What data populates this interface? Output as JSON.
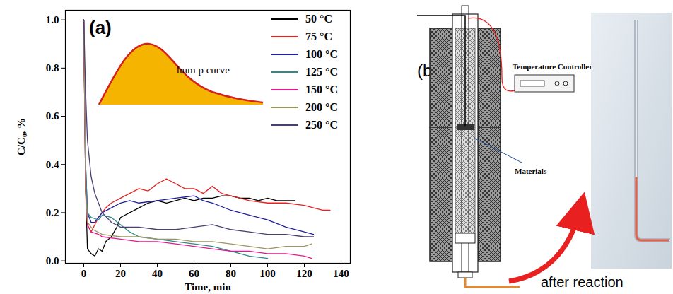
{
  "chart_data": {
    "type": "line",
    "x_label": "Time, min",
    "y_label": "C/C₀, %",
    "annotations": [
      "(a)",
      "hum p curve"
    ],
    "xlim": [
      -10,
      145
    ],
    "xticks": [
      0,
      20,
      40,
      60,
      80,
      100,
      120,
      140
    ],
    "ylim": [
      -0.01,
      1.04
    ],
    "yticks": [
      {
        "value": 0,
        "label": "0.0"
      },
      0.2,
      0.4,
      0.6,
      0.8,
      {
        "value": 1,
        "label": "1.0"
      }
    ],
    "grid": false,
    "legend": "top-right",
    "series": [
      {
        "name": "50 °C",
        "color": "#000000",
        "x": [
          0,
          1,
          2,
          4,
          6,
          8,
          10,
          12,
          15,
          18,
          20,
          25,
          30,
          35,
          40,
          45,
          50,
          55,
          60,
          65,
          70,
          75,
          80,
          85,
          90,
          95,
          100,
          105,
          110,
          115
        ],
        "values": [
          1.0,
          0.3,
          0.05,
          0.03,
          0.02,
          0.05,
          0.04,
          0.08,
          0.1,
          0.14,
          0.18,
          0.2,
          0.22,
          0.24,
          0.25,
          0.24,
          0.25,
          0.26,
          0.25,
          0.26,
          0.26,
          0.27,
          0.27,
          0.26,
          0.26,
          0.25,
          0.26,
          0.25,
          0.25,
          0.25
        ]
      },
      {
        "name": "75 °C",
        "color": "#e8201f",
        "x": [
          0,
          1,
          2,
          4,
          6,
          8,
          10,
          12,
          15,
          20,
          25,
          30,
          35,
          40,
          45,
          50,
          55,
          60,
          65,
          70,
          75,
          80,
          85,
          90,
          100,
          110,
          120,
          125,
          130,
          134
        ],
        "values": [
          1.0,
          0.3,
          0.15,
          0.12,
          0.15,
          0.18,
          0.2,
          0.22,
          0.24,
          0.26,
          0.28,
          0.3,
          0.29,
          0.32,
          0.34,
          0.32,
          0.3,
          0.3,
          0.28,
          0.31,
          0.28,
          0.27,
          0.26,
          0.25,
          0.24,
          0.24,
          0.23,
          0.22,
          0.21,
          0.21
        ]
      },
      {
        "name": "100 °C",
        "color": "#1f1f9e",
        "x": [
          0,
          1,
          2,
          4,
          6,
          8,
          10,
          15,
          20,
          25,
          30,
          40,
          50,
          60,
          65,
          70,
          80,
          90,
          100,
          110,
          120,
          125
        ],
        "values": [
          1.0,
          0.4,
          0.2,
          0.16,
          0.16,
          0.18,
          0.2,
          0.22,
          0.24,
          0.25,
          0.24,
          0.25,
          0.26,
          0.27,
          0.25,
          0.24,
          0.21,
          0.19,
          0.17,
          0.14,
          0.12,
          0.11
        ]
      },
      {
        "name": "125 °C",
        "color": "#2e8b8b",
        "x": [
          0,
          1,
          2,
          4,
          8,
          10,
          15,
          20,
          25,
          30,
          40,
          50,
          60,
          70,
          80,
          90,
          100
        ],
        "values": [
          1.0,
          0.4,
          0.2,
          0.18,
          0.17,
          0.19,
          0.18,
          0.15,
          0.12,
          0.1,
          0.09,
          0.08,
          0.07,
          0.06,
          0.04,
          0.02,
          0.01
        ]
      },
      {
        "name": "150 °C",
        "color": "#e6178f",
        "x": [
          0,
          1,
          2,
          4,
          8,
          10,
          20,
          30,
          40,
          50,
          60,
          70,
          80,
          90,
          100,
          110,
          120,
          124
        ],
        "values": [
          1.0,
          0.3,
          0.15,
          0.12,
          0.11,
          0.1,
          0.09,
          0.08,
          0.08,
          0.07,
          0.06,
          0.05,
          0.04,
          0.04,
          0.03,
          0.03,
          0.02,
          0.01
        ]
      },
      {
        "name": "200 °C",
        "color": "#9b9560",
        "x": [
          0,
          1,
          2,
          5,
          10,
          20,
          30,
          40,
          50,
          60,
          70,
          80,
          90,
          100,
          110,
          120,
          124
        ],
        "values": [
          1.0,
          0.3,
          0.16,
          0.13,
          0.11,
          0.1,
          0.1,
          0.09,
          0.09,
          0.08,
          0.08,
          0.07,
          0.06,
          0.05,
          0.06,
          0.06,
          0.07
        ]
      },
      {
        "name": "250 °C",
        "color": "#4b3f72",
        "x": [
          0,
          1,
          2,
          4,
          6,
          8,
          10,
          15,
          20,
          30,
          40,
          50,
          60,
          70,
          80,
          90,
          100,
          110,
          120,
          125
        ],
        "values": [
          1.0,
          0.7,
          0.5,
          0.35,
          0.28,
          0.24,
          0.2,
          0.16,
          0.14,
          0.14,
          0.13,
          0.13,
          0.14,
          0.15,
          0.13,
          0.12,
          0.11,
          0.11,
          0.1,
          0.1
        ]
      }
    ]
  },
  "panel_b": {
    "label": "(b)",
    "temperature_controller": "Temperature Controller",
    "materials": "Materials",
    "caption": "after reaction"
  }
}
